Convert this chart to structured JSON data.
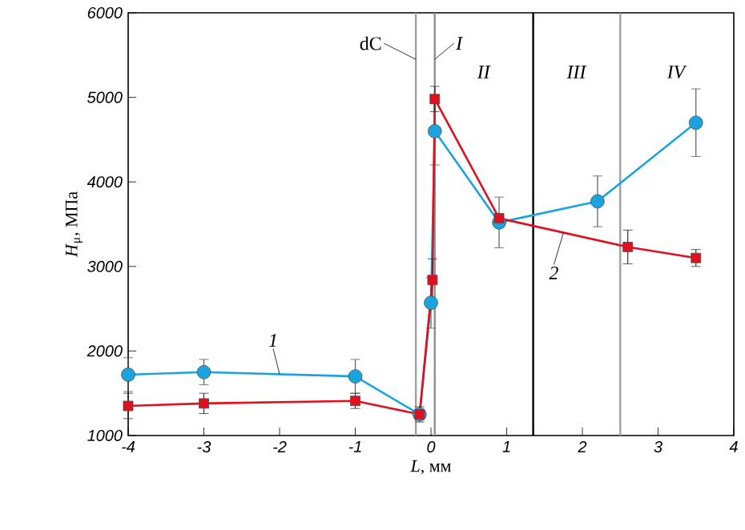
{
  "chart_data": {
    "type": "line",
    "xlabel": "*L*, мм",
    "ylabel": "*H*$_{μ}$, МПа",
    "xlim": [
      -4,
      4
    ],
    "ylim": [
      1000,
      6000
    ],
    "xticks": [
      -4,
      -3,
      -2,
      -1,
      0,
      1,
      2,
      3,
      4
    ],
    "yticks": [
      1000,
      2000,
      3000,
      4000,
      5000,
      6000
    ],
    "grid": false,
    "legend": false,
    "series": [
      {
        "name": "1",
        "color": "#1ba3e0",
        "marker": "circle",
        "x": [
          -4,
          -3,
          -1,
          -0.15,
          0,
          0.05,
          0.9,
          2.2,
          3.5
        ],
        "values": [
          1720,
          1750,
          1700,
          1250,
          2570,
          4600,
          3520,
          3770,
          4700
        ],
        "errors": [
          200,
          150,
          200,
          60,
          300,
          400,
          300,
          300,
          400
        ]
      },
      {
        "name": "2",
        "color": "#e0101f",
        "marker": "square",
        "x": [
          -4,
          -3,
          -1,
          -0.15,
          0.02,
          0.05,
          0.9,
          2.6,
          3.5
        ],
        "values": [
          1350,
          1380,
          1410,
          1250,
          2840,
          4980,
          3570,
          3230,
          3100
        ],
        "errors": [
          150,
          120,
          90,
          90,
          250,
          150,
          null,
          200,
          100
        ]
      }
    ],
    "ref_lines": [
      {
        "axis": "x",
        "value": -0.2,
        "label": "dC",
        "color": "#a0a0a0"
      },
      {
        "axis": "x",
        "value": 0.05,
        "label": "*I*",
        "color": "#909090"
      },
      {
        "axis": "x",
        "value": 1.35,
        "color": "#000000"
      },
      {
        "axis": "x",
        "value": 2.5,
        "color": "#a0a0a0"
      }
    ],
    "annotations": [
      "*II*",
      "*III*",
      "*IV*"
    ]
  }
}
